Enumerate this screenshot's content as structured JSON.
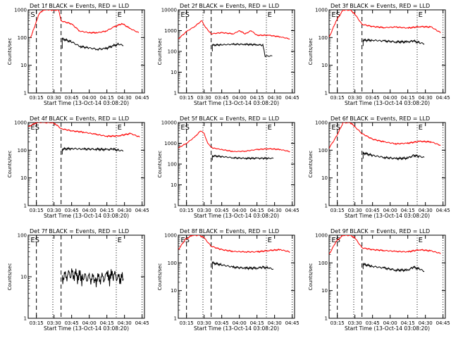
{
  "figure": {
    "background": "#ffffff",
    "axis_color": "#000000",
    "events_color": "#000000",
    "lld_color": "#ff0000"
  },
  "chart_data": [
    {
      "type": "line",
      "title": "Det 1f BLACK = Events, RED = LLD",
      "xlabel": "Start Time (13-Oct-14 03:08:20)",
      "ylabel": "Counts/sec",
      "yscale": "log",
      "ylim": [
        1,
        1000
      ],
      "x_ticks": [
        "03:15",
        "03:30",
        "03:45",
        "04:00",
        "04:15",
        "04:30",
        "04:45"
      ],
      "y_ticks": [
        "1",
        "10",
        "100",
        "1000"
      ],
      "markers": {
        "dashed": [
          "03:15",
          "03:36"
        ],
        "dotted": [
          "03:29",
          "04:23",
          "04:45"
        ],
        "labels": [
          {
            "text": "S",
            "at": "03:10"
          },
          {
            "text": "E",
            "at": "04:24"
          }
        ]
      },
      "series": [
        {
          "role": "lld",
          "color": "#ff0000",
          "x": [
            "03:10",
            "03:14",
            "03:17",
            "03:21",
            "03:26",
            "03:34",
            "03:36",
            "03:45",
            "03:52",
            "04:00",
            "04:07",
            "04:14",
            "04:21",
            "04:28",
            "04:35",
            "04:42"
          ],
          "y": [
            100,
            280,
            700,
            1000,
            1000,
            1000,
            400,
            310,
            170,
            150,
            150,
            170,
            240,
            320,
            210,
            150
          ]
        },
        {
          "role": "events",
          "color": "#000000",
          "x": [
            "03:37",
            "03:37",
            "03:45",
            "03:52",
            "04:00",
            "04:07",
            "04:14",
            "04:20",
            "04:25",
            "04:29"
          ],
          "y": [
            40,
            90,
            70,
            48,
            42,
            38,
            40,
            50,
            58,
            52
          ]
        }
      ]
    },
    {
      "type": "line",
      "title": "Det 2f BLACK = Events, RED = LLD",
      "xlabel": "Start Time (13-Oct-14 03:08:20)",
      "ylabel": "Counts/sec",
      "yscale": "log",
      "ylim": [
        1,
        10000
      ],
      "x_ticks": [
        "03:15",
        "03:30",
        "03:45",
        "04:00",
        "04:15",
        "04:30",
        "04:45"
      ],
      "y_ticks": [
        "1",
        "10",
        "100",
        "1000",
        "10000"
      ],
      "markers": {
        "dashed": [
          "03:15",
          "03:36"
        ],
        "dotted": [
          "03:29",
          "04:23",
          "04:45"
        ],
        "labels": [
          {
            "text": "ES",
            "at": "03:10"
          },
          {
            "text": "E",
            "at": "04:24"
          }
        ]
      },
      "series": [
        {
          "role": "lld",
          "color": "#ff0000",
          "x": [
            "03:08",
            "03:15",
            "03:22",
            "03:28",
            "03:31",
            "03:36",
            "03:45",
            "03:55",
            "04:00",
            "04:05",
            "04:10",
            "04:15",
            "04:25",
            "04:35",
            "04:43"
          ],
          "y": [
            400,
            900,
            1600,
            3000,
            1500,
            700,
            800,
            700,
            1000,
            700,
            1000,
            600,
            600,
            500,
            400
          ]
        },
        {
          "role": "events",
          "color": "#000000",
          "x": [
            "03:37",
            "03:37",
            "03:45",
            "03:55",
            "04:05",
            "04:15",
            "04:20",
            "04:22",
            "04:28"
          ],
          "y": [
            100,
            200,
            210,
            220,
            220,
            210,
            200,
            60,
            60
          ]
        }
      ]
    },
    {
      "type": "line",
      "title": "Det 3f BLACK = Events, RED = LLD",
      "xlabel": "Start Time (13-Oct-14 03:08:20)",
      "ylabel": "Counts/sec",
      "yscale": "log",
      "ylim": [
        1,
        1000
      ],
      "x_ticks": [
        "03:15",
        "03:30",
        "03:45",
        "04:00",
        "04:15",
        "04:30",
        "04:45"
      ],
      "y_ticks": [
        "1",
        "10",
        "100",
        "1000"
      ],
      "markers": {
        "dashed": [
          "03:15",
          "03:36"
        ],
        "dotted": [
          "03:29",
          "04:23",
          "04:45"
        ],
        "labels": [
          {
            "text": "ES",
            "at": "03:10"
          },
          {
            "text": "E",
            "at": "04:24"
          }
        ]
      },
      "series": [
        {
          "role": "lld",
          "color": "#ff0000",
          "x": [
            "03:08",
            "03:14",
            "03:20",
            "03:26",
            "03:30",
            "03:36",
            "03:45",
            "03:55",
            "04:05",
            "04:15",
            "04:25",
            "04:35",
            "04:43"
          ],
          "y": [
            100,
            400,
            1000,
            1000,
            700,
            300,
            250,
            230,
            240,
            220,
            250,
            240,
            150
          ]
        },
        {
          "role": "events",
          "color": "#000000",
          "x": [
            "03:37",
            "03:37",
            "03:45",
            "03:55",
            "04:05",
            "04:15",
            "04:20",
            "04:25",
            "04:29"
          ],
          "y": [
            50,
            80,
            80,
            75,
            70,
            70,
            75,
            65,
            60
          ]
        }
      ]
    },
    {
      "type": "line",
      "title": "Det 4f BLACK = Events, RED = LLD",
      "xlabel": "Start Time (13-Oct-14 03:08:20)",
      "ylabel": "Counts/sec",
      "yscale": "log",
      "ylim": [
        1,
        1000
      ],
      "x_ticks": [
        "03:15",
        "03:30",
        "03:45",
        "04:00",
        "04:15",
        "04:30",
        "04:45"
      ],
      "y_ticks": [
        "1",
        "10",
        "100",
        "1000"
      ],
      "markers": {
        "dashed": [
          "03:15",
          "03:36"
        ],
        "dotted": [
          "03:29",
          "04:23",
          "04:45"
        ],
        "labels": [
          {
            "text": "ES",
            "at": "03:10"
          },
          {
            "text": "E",
            "at": "04:24"
          }
        ]
      },
      "series": [
        {
          "role": "lld",
          "color": "#ff0000",
          "x": [
            "03:08",
            "03:15",
            "03:22",
            "03:28",
            "03:31",
            "03:36",
            "03:45",
            "03:55",
            "04:05",
            "04:15",
            "04:25",
            "04:35",
            "04:43"
          ],
          "y": [
            700,
            1000,
            1000,
            1000,
            900,
            600,
            500,
            450,
            380,
            320,
            330,
            400,
            300
          ]
        },
        {
          "role": "events",
          "color": "#000000",
          "x": [
            "03:37",
            "03:37",
            "03:45",
            "03:55",
            "04:05",
            "04:15",
            "04:20",
            "04:25",
            "04:29"
          ],
          "y": [
            70,
            110,
            115,
            110,
            110,
            105,
            110,
            100,
            95
          ]
        }
      ]
    },
    {
      "type": "line",
      "title": "Det 5f BLACK = Events, RED = LLD",
      "xlabel": "Start Time (13-Oct-14 03:08:20)",
      "ylabel": "Counts/sec",
      "yscale": "log",
      "ylim": [
        1,
        10000
      ],
      "x_ticks": [
        "03:15",
        "03:30",
        "03:45",
        "04:00",
        "04:15",
        "04:30",
        "04:45"
      ],
      "y_ticks": [
        "1",
        "10",
        "100",
        "1000",
        "10000"
      ],
      "markers": {
        "dashed": [
          "03:15",
          "03:36"
        ],
        "dotted": [
          "03:29",
          "04:23",
          "04:45"
        ],
        "labels": [
          {
            "text": "ES",
            "at": "03:10"
          },
          {
            "text": "E",
            "at": "04:24"
          }
        ]
      },
      "series": [
        {
          "role": "lld",
          "color": "#ff0000",
          "x": [
            "03:08",
            "03:15",
            "03:22",
            "03:27",
            "03:30",
            "03:33",
            "03:37",
            "03:45",
            "03:55",
            "04:05",
            "04:15",
            "04:25",
            "04:35",
            "04:43"
          ],
          "y": [
            600,
            1000,
            2000,
            4000,
            3000,
            1000,
            600,
            500,
            400,
            420,
            500,
            550,
            500,
            400
          ]
        },
        {
          "role": "events",
          "color": "#000000",
          "x": [
            "03:37",
            "03:37",
            "03:45",
            "03:55",
            "04:05",
            "04:15",
            "04:20",
            "04:25",
            "04:29"
          ],
          "y": [
            150,
            250,
            230,
            200,
            190,
            190,
            190,
            190,
            190
          ]
        }
      ]
    },
    {
      "type": "line",
      "title": "Det 6f BLACK = Events, RED = LLD",
      "xlabel": "Start Time (13-Oct-14 03:08:20)",
      "ylabel": "Counts/sec",
      "yscale": "log",
      "ylim": [
        1,
        1000
      ],
      "x_ticks": [
        "03:15",
        "03:30",
        "03:45",
        "04:00",
        "04:15",
        "04:30",
        "04:45"
      ],
      "y_ticks": [
        "1",
        "10",
        "100",
        "1000"
      ],
      "markers": {
        "dashed": [
          "03:15",
          "03:36"
        ],
        "dotted": [
          "03:29",
          "04:23",
          "04:45"
        ],
        "labels": [
          {
            "text": "ES",
            "at": "03:10"
          },
          {
            "text": "E",
            "at": "04:24"
          }
        ]
      },
      "series": [
        {
          "role": "lld",
          "color": "#ff0000",
          "x": [
            "03:08",
            "03:14",
            "03:20",
            "03:26",
            "03:30",
            "03:36",
            "03:45",
            "03:55",
            "04:05",
            "04:15",
            "04:25",
            "04:35",
            "04:43"
          ],
          "y": [
            120,
            300,
            1000,
            1000,
            700,
            400,
            250,
            200,
            170,
            180,
            210,
            200,
            150
          ]
        },
        {
          "role": "events",
          "color": "#000000",
          "x": [
            "03:37",
            "03:37",
            "03:45",
            "03:55",
            "04:05",
            "04:15",
            "04:20",
            "04:25",
            "04:29"
          ],
          "y": [
            50,
            80,
            65,
            55,
            50,
            52,
            65,
            60,
            55
          ]
        }
      ]
    },
    {
      "type": "line",
      "title": "Det 7f BLACK = Events, RED = LLD",
      "xlabel": "Start Time (13-Oct-14 03:08:20)",
      "ylabel": "Counts/sec",
      "yscale": "log",
      "ylim": [
        1,
        100
      ],
      "x_ticks": [
        "03:15",
        "03:30",
        "03:45",
        "04:00",
        "04:15",
        "04:30",
        "04:45"
      ],
      "y_ticks": [
        "1",
        "10",
        "100"
      ],
      "markers": {
        "dashed": [
          "03:15",
          "03:36"
        ],
        "dotted": [
          "03:29",
          "04:23",
          "04:45"
        ],
        "labels": [
          {
            "text": "ES",
            "at": "03:10"
          },
          {
            "text": "E",
            "at": "04:24"
          }
        ]
      },
      "series": [
        {
          "role": "events",
          "color": "#000000",
          "x": [
            "03:37",
            "03:45",
            "03:55",
            "04:05",
            "04:15",
            "04:20",
            "04:25",
            "04:29"
          ],
          "y": [
            10,
            12,
            10,
            9,
            10,
            11,
            10,
            9
          ]
        }
      ]
    },
    {
      "type": "line",
      "title": "Det 8f BLACK = Events, RED = LLD",
      "xlabel": "Start Time (13-Oct-14 03:08:20)",
      "ylabel": "Counts/sec",
      "yscale": "log",
      "ylim": [
        1,
        1000
      ],
      "x_ticks": [
        "03:15",
        "03:30",
        "03:45",
        "04:00",
        "04:15",
        "04:30",
        "04:45"
      ],
      "y_ticks": [
        "1",
        "10",
        "100",
        "1000"
      ],
      "markers": {
        "dashed": [
          "03:15",
          "03:36"
        ],
        "dotted": [
          "03:29",
          "04:23",
          "04:45"
        ],
        "labels": [
          {
            "text": "ES",
            "at": "03:10"
          },
          {
            "text": "E",
            "at": "04:24"
          }
        ]
      },
      "series": [
        {
          "role": "lld",
          "color": "#ff0000",
          "x": [
            "03:08",
            "03:14",
            "03:20",
            "03:26",
            "03:30",
            "03:36",
            "03:45",
            "03:55",
            "04:05",
            "04:15",
            "04:25",
            "04:35",
            "04:43"
          ],
          "y": [
            300,
            700,
            1000,
            1000,
            800,
            400,
            300,
            260,
            250,
            250,
            280,
            300,
            250
          ]
        },
        {
          "role": "events",
          "color": "#000000",
          "x": [
            "03:37",
            "03:37",
            "03:45",
            "03:55",
            "04:05",
            "04:15",
            "04:20",
            "04:25",
            "04:29"
          ],
          "y": [
            60,
            100,
            85,
            70,
            65,
            65,
            70,
            65,
            60
          ]
        }
      ]
    },
    {
      "type": "line",
      "title": "Det 9f BLACK = Events, RED = LLD",
      "xlabel": "Start Time (13-Oct-14 03:08:20)",
      "ylabel": "Counts/sec",
      "yscale": "log",
      "ylim": [
        1,
        1000
      ],
      "x_ticks": [
        "03:15",
        "03:30",
        "03:45",
        "04:00",
        "04:15",
        "04:30",
        "04:45"
      ],
      "y_ticks": [
        "1",
        "10",
        "100",
        "1000"
      ],
      "markers": {
        "dashed": [
          "03:15",
          "03:36"
        ],
        "dotted": [
          "03:29",
          "04:23",
          "04:45"
        ],
        "labels": [
          {
            "text": "ES",
            "at": "03:10"
          },
          {
            "text": "E",
            "at": "04:24"
          }
        ]
      },
      "series": [
        {
          "role": "lld",
          "color": "#ff0000",
          "x": [
            "03:08",
            "03:14",
            "03:20",
            "03:26",
            "03:30",
            "03:36",
            "03:45",
            "03:55",
            "04:05",
            "04:15",
            "04:25",
            "04:35",
            "04:43"
          ],
          "y": [
            200,
            600,
            1000,
            1000,
            800,
            350,
            300,
            280,
            260,
            250,
            300,
            270,
            220
          ]
        },
        {
          "role": "events",
          "color": "#000000",
          "x": [
            "03:37",
            "03:37",
            "03:45",
            "03:55",
            "04:05",
            "04:15",
            "04:20",
            "04:25",
            "04:29"
          ],
          "y": [
            60,
            90,
            75,
            65,
            55,
            55,
            70,
            60,
            50
          ]
        }
      ]
    }
  ]
}
